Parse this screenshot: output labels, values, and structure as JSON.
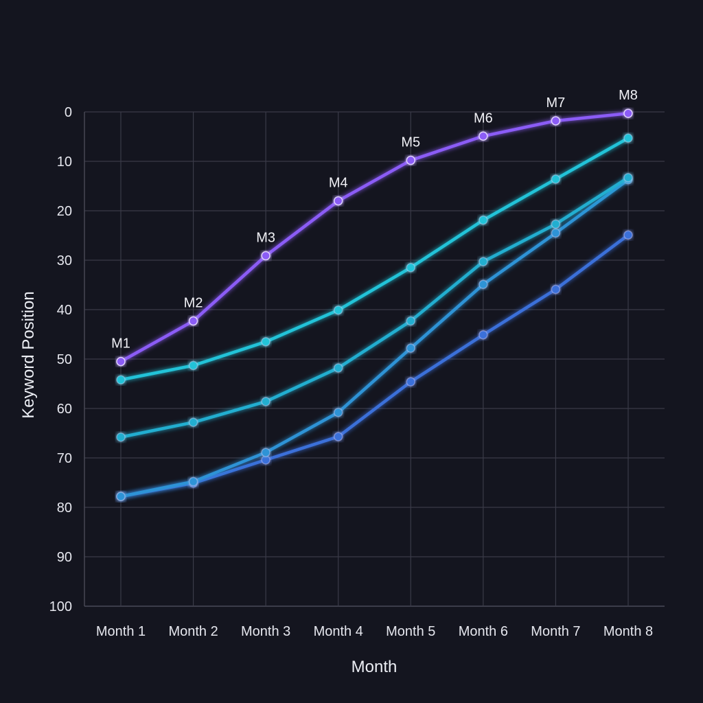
{
  "chart_data": {
    "type": "line",
    "title": "",
    "xlabel": "Month",
    "ylabel": "Keyword Position",
    "categories": [
      "Month 1",
      "Month 2",
      "Month 3",
      "Month 4",
      "Month 5",
      "Month 6",
      "Month 7",
      "Month 8"
    ],
    "ylim": [
      0,
      100
    ],
    "y_inverted": true,
    "yticks": [
      "0",
      "10",
      "20",
      "30",
      "40",
      "50",
      "60",
      "70",
      "80",
      "90",
      "100"
    ],
    "grid": true,
    "legend": "none",
    "series": [
      {
        "color": "#8b5cf6",
        "values": [
          50.5,
          42.3,
          29.1,
          18.0,
          9.8,
          4.9,
          1.8,
          0.3
        ],
        "point_labels": [
          "M1",
          "M2",
          "M3",
          "M4",
          "M5",
          "M6",
          "M7",
          "M8"
        ]
      },
      {
        "color": "#22c3d8",
        "values": [
          54.2,
          51.3,
          46.5,
          40.1,
          31.5,
          21.9,
          13.6,
          5.3
        ]
      },
      {
        "color": "#22aed0",
        "values": [
          65.8,
          62.8,
          58.6,
          51.8,
          42.3,
          30.3,
          22.7,
          13.3
        ]
      },
      {
        "color": "#2e93d6",
        "values": [
          77.8,
          74.8,
          68.9,
          60.8,
          47.8,
          34.9,
          24.5,
          13.7
        ]
      },
      {
        "color": "#3b6fd9",
        "values": [
          77.8,
          75.1,
          70.4,
          65.7,
          54.6,
          45.1,
          35.9,
          24.9
        ]
      }
    ]
  }
}
